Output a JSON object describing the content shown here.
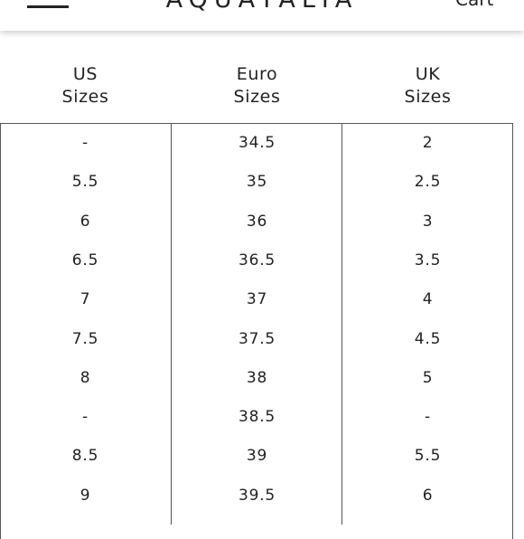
{
  "header": {
    "brand": "AQUATALIA",
    "cart_label": "Cart",
    "menu_icon": "hamburger-menu-icon"
  },
  "table": {
    "headers": [
      [
        "US",
        "Sizes"
      ],
      [
        "Euro",
        "Sizes"
      ],
      [
        "UK",
        "Sizes"
      ]
    ],
    "rows": [
      [
        "-",
        "34.5",
        "2"
      ],
      [
        "5.5",
        "35",
        "2.5"
      ],
      [
        "6",
        "36",
        "3"
      ],
      [
        "6.5",
        "36.5",
        "3.5"
      ],
      [
        "7",
        "37",
        "4"
      ],
      [
        "7.5",
        "37.5",
        "4.5"
      ],
      [
        "8",
        "38",
        "5"
      ],
      [
        "-",
        "38.5",
        "-"
      ],
      [
        "8.5",
        "39",
        "5.5"
      ],
      [
        "9",
        "39.5",
        "6"
      ]
    ]
  }
}
